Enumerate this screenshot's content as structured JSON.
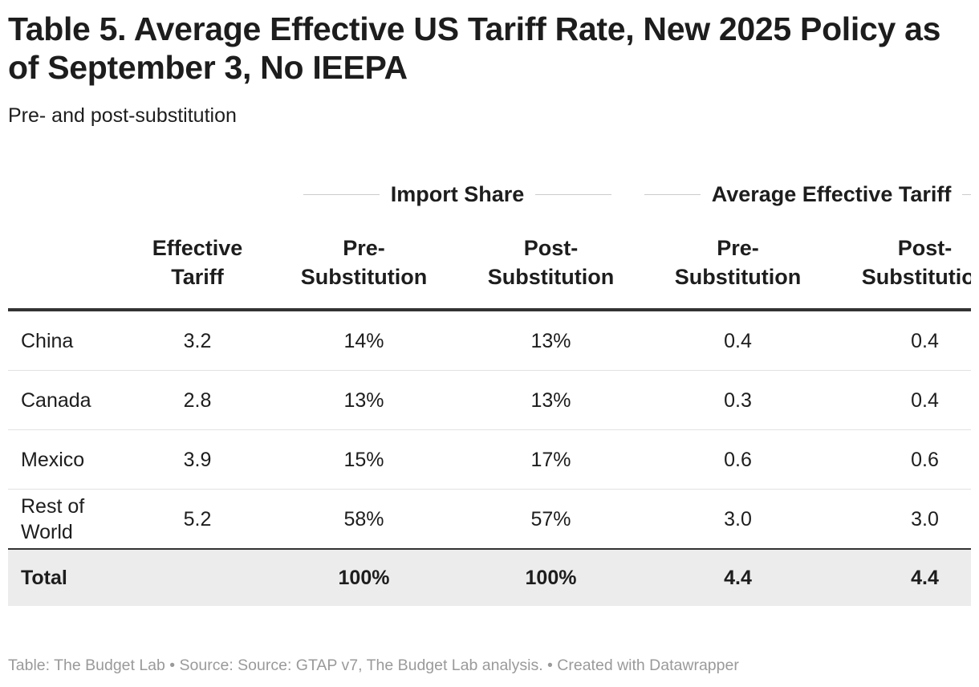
{
  "header": {
    "title": "Table 5. Average Effective US Tariff Rate, New 2025 Policy as of September 3, No IEEPA",
    "subtitle": "Pre- and post-substitution"
  },
  "table": {
    "groups": [
      {
        "label": "Import Share",
        "span": 2
      },
      {
        "label": "Average Effective Tariff",
        "span": 2
      }
    ],
    "columns": [
      [
        "Effective",
        "Tariff"
      ],
      [
        "Pre-",
        "Substitution"
      ],
      [
        "Post-",
        "Substitution"
      ],
      [
        "Pre-",
        "Substitution"
      ],
      [
        "Post-",
        "Substitution"
      ]
    ],
    "rows": [
      {
        "label": [
          "China"
        ],
        "cells": [
          "3.2",
          "14%",
          "13%",
          "0.4",
          "0.4"
        ]
      },
      {
        "label": [
          "Canada"
        ],
        "cells": [
          "2.8",
          "13%",
          "13%",
          "0.3",
          "0.4"
        ]
      },
      {
        "label": [
          "Mexico"
        ],
        "cells": [
          "3.9",
          "15%",
          "17%",
          "0.6",
          "0.6"
        ]
      },
      {
        "label": [
          "Rest of",
          "World"
        ],
        "cells": [
          "5.2",
          "58%",
          "57%",
          "3.0",
          "3.0"
        ]
      }
    ],
    "total": {
      "label": "Total",
      "cells": [
        null,
        "100%",
        "100%",
        "4.4",
        "4.4"
      ]
    }
  },
  "footer": {
    "note": "Table: The Budget Lab • Source: Source: GTAP v7, The Budget Lab analysis. • Created with Datawrapper"
  }
}
